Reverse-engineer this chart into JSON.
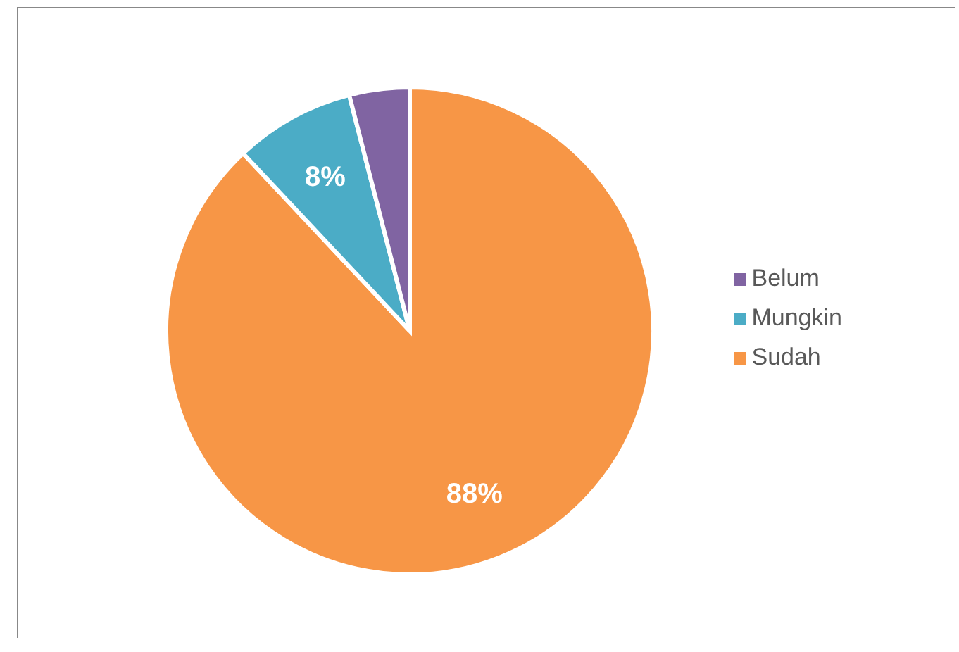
{
  "chart_data": {
    "type": "pie",
    "categories": [
      "Sudah",
      "Mungkin",
      "Belum"
    ],
    "values": [
      88,
      8,
      4
    ],
    "colors": [
      "#f79646",
      "#4bacc6",
      "#8064a2"
    ],
    "value_labels": [
      "88%",
      "8%",
      null
    ],
    "legend": "right"
  }
}
